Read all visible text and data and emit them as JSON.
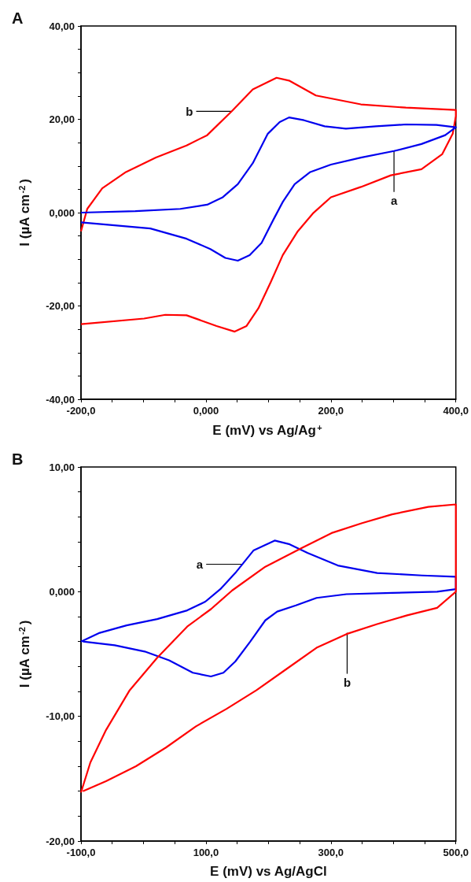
{
  "chart_data": [
    {
      "type": "line",
      "title": "A",
      "xlabel": "E (mV) vs Ag/Ag$^{+}$",
      "ylabel": "I (µA cm$^{-2}$)",
      "xlim": [
        -200,
        400
      ],
      "ylim": [
        -40,
        40
      ],
      "xticks": [
        {
          "value": -200,
          "label": "-200,0"
        },
        {
          "value": -150,
          "label": null
        },
        {
          "value": -100,
          "label": null
        },
        {
          "value": -50,
          "label": null
        },
        {
          "value": 0,
          "label": "0,000"
        },
        {
          "value": 50,
          "label": null
        },
        {
          "value": 100,
          "label": null
        },
        {
          "value": 150,
          "label": null
        },
        {
          "value": 200,
          "label": "200,0"
        },
        {
          "value": 250,
          "label": null
        },
        {
          "value": 300,
          "label": null
        },
        {
          "value": 350,
          "label": null
        },
        {
          "value": 400,
          "label": "400,0"
        }
      ],
      "yticks": [
        {
          "value": -40,
          "label": "-40,00"
        },
        {
          "value": -35,
          "label": null
        },
        {
          "value": -30,
          "label": null
        },
        {
          "value": -25,
          "label": null
        },
        {
          "value": -20,
          "label": "-20,00"
        },
        {
          "value": -15,
          "label": null
        },
        {
          "value": -10,
          "label": null
        },
        {
          "value": -5,
          "label": null
        },
        {
          "value": 0,
          "label": "0,000"
        },
        {
          "value": 5,
          "label": null
        },
        {
          "value": 10,
          "label": null
        },
        {
          "value": 15,
          "label": null
        },
        {
          "value": 20,
          "label": "20,00"
        },
        {
          "value": 25,
          "label": null
        },
        {
          "value": 30,
          "label": null
        },
        {
          "value": 35,
          "label": null
        },
        {
          "value": 40,
          "label": "40,00"
        }
      ],
      "grid": false,
      "series": [
        {
          "color": "#ff0000",
          "x": [
            -200,
            -190,
            -166,
            -128,
            -80,
            -31,
            2,
            41,
            75,
            113,
            133,
            176,
            248,
            320,
            400,
            400,
            395,
            378,
            345,
            296,
            248,
            200,
            171,
            147,
            123,
            104,
            84,
            65,
            46,
            17,
            -31,
            -65,
            -99,
            -200
          ],
          "values": [
            -4,
            0.8,
            5.2,
            8.7,
            11.8,
            14.4,
            16.6,
            21.7,
            26.4,
            28.9,
            28.3,
            25.1,
            23.2,
            22.5,
            22,
            20.7,
            16.9,
            12.5,
            9.3,
            8,
            5.5,
            3.3,
            -0.2,
            -4,
            -9.1,
            -14.8,
            -20.5,
            -24.3,
            -25.5,
            -24.3,
            -22,
            -21.9,
            -22.7,
            -23.9
          ]
        },
        {
          "color": "#0000ee",
          "x": [
            -200,
            -113,
            -41,
            2,
            27,
            51,
            75,
            99,
            118,
            133,
            157,
            190,
            224,
            272,
            320,
            369,
            400,
            383,
            345,
            301,
            248,
            200,
            167,
            142,
            123,
            108,
            89,
            70,
            51,
            31,
            7,
            -31,
            -89,
            -200
          ],
          "values": [
            0,
            0.3,
            0.8,
            1.7,
            3.3,
            6.1,
            10.6,
            16.9,
            19.4,
            20.4,
            19.8,
            18.5,
            18,
            18.5,
            18.9,
            18.8,
            18.3,
            16.6,
            14.7,
            13.2,
            11.8,
            10.3,
            8.7,
            6.1,
            2.3,
            -1.5,
            -6.5,
            -9.1,
            -10.3,
            -9.7,
            -7.8,
            -5.6,
            -3.4,
            -2.1
          ]
        }
      ],
      "annotations": [
        {
          "text": "b",
          "x": 41,
          "y": 21.7
        },
        {
          "text": "a",
          "x": 301,
          "y": 13.2
        }
      ]
    },
    {
      "type": "line",
      "title": "B",
      "xlabel": "E (mV) vs Ag/AgCl",
      "ylabel": "I (µA cm$^{-2}$)",
      "xlim": [
        -100,
        500
      ],
      "ylim": [
        -20,
        10
      ],
      "xticks": [
        {
          "value": -100,
          "label": "-100,0"
        },
        {
          "value": -50,
          "label": null
        },
        {
          "value": 0,
          "label": null
        },
        {
          "value": 50,
          "label": null
        },
        {
          "value": 100,
          "label": "100,0"
        },
        {
          "value": 150,
          "label": null
        },
        {
          "value": 200,
          "label": null
        },
        {
          "value": 250,
          "label": null
        },
        {
          "value": 300,
          "label": "300,0"
        },
        {
          "value": 350,
          "label": null
        },
        {
          "value": 400,
          "label": null
        },
        {
          "value": 450,
          "label": null
        },
        {
          "value": 500,
          "label": "500,0"
        }
      ],
      "yticks": [
        {
          "value": -20,
          "label": "-20,00"
        },
        {
          "value": -18,
          "label": null
        },
        {
          "value": -16,
          "label": null
        },
        {
          "value": -14,
          "label": null
        },
        {
          "value": -12,
          "label": null
        },
        {
          "value": -10,
          "label": "-10,00"
        },
        {
          "value": -8,
          "label": null
        },
        {
          "value": -6,
          "label": null
        },
        {
          "value": -4,
          "label": null
        },
        {
          "value": -2,
          "label": null
        },
        {
          "value": 0,
          "label": "0,000"
        },
        {
          "value": 2,
          "label": null
        },
        {
          "value": 4,
          "label": null
        },
        {
          "value": 6,
          "label": null
        },
        {
          "value": 8,
          "label": null
        },
        {
          "value": 10,
          "label": "10,00"
        }
      ],
      "grid": false,
      "series": [
        {
          "color": "#0000ee",
          "x": [
            -100,
            -70,
            -27,
            22,
            70,
            99,
            123,
            147,
            176,
            210,
            234,
            263,
            311,
            374,
            446,
            500,
            500,
            470,
            398,
            325,
            277,
            244,
            214,
            195,
            171,
            147,
            128,
            108,
            79,
            41,
            2,
            -46,
            -97
          ],
          "values": [
            -4,
            -3.3,
            -2.7,
            -2.2,
            -1.5,
            -0.8,
            0.2,
            1.5,
            3.3,
            4.1,
            3.8,
            3.1,
            2.1,
            1.5,
            1.3,
            1.2,
            0.2,
            0,
            -0.1,
            -0.2,
            -0.5,
            -1.1,
            -1.6,
            -2.3,
            -4,
            -5.6,
            -6.5,
            -6.8,
            -6.5,
            -5.5,
            -4.8,
            -4.3,
            -4.0
          ]
        },
        {
          "color": "#ff0000",
          "x": [
            -100,
            -85,
            -60,
            -22,
            22,
            70,
            108,
            142,
            195,
            253,
            301,
            350,
            398,
            456,
            500,
            500,
            470,
            422,
            374,
            325,
            277,
            229,
            181,
            133,
            84,
            36,
            -12,
            -60,
            -97
          ],
          "values": [
            -16.1,
            -13.7,
            -11.1,
            -7.9,
            -5.3,
            -2.8,
            -1.4,
            0.1,
            2,
            3.5,
            4.7,
            5.5,
            6.2,
            6.8,
            7,
            0,
            -1.3,
            -1.9,
            -2.6,
            -3.4,
            -4.5,
            -6.2,
            -7.9,
            -9.4,
            -10.8,
            -12.5,
            -14,
            -15.2,
            -16
          ]
        }
      ],
      "annotations": [
        {
          "text": "a",
          "x": 157,
          "y": 2.2
        },
        {
          "text": "b",
          "x": 326,
          "y": -3.3
        }
      ]
    }
  ]
}
